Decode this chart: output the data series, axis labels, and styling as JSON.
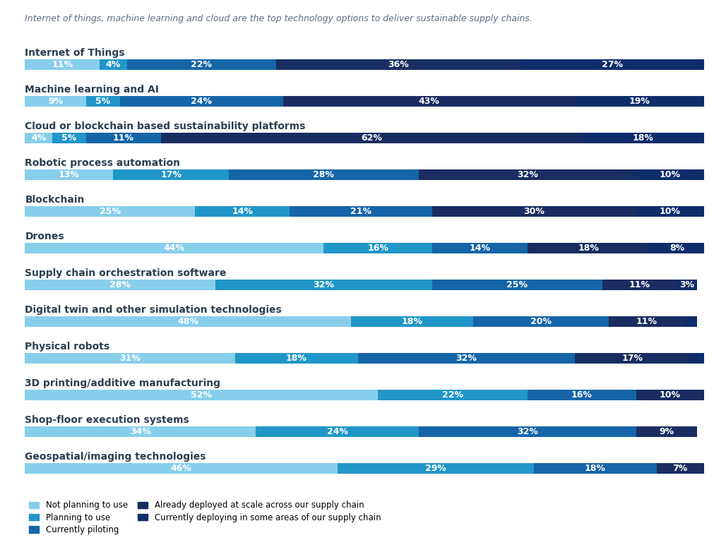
{
  "subtitle": "Internet of things, machine learning and cloud are the top technology options to deliver sustainable supply chains.",
  "categories": [
    "Internet of Things",
    "Machine learning and AI",
    "Cloud or blockchain based sustainability platforms",
    "Robotic process automation",
    "Blockchain",
    "Drones",
    "Supply chain orchestration software",
    "Digital twin and other simulation technologies",
    "Physical robots",
    "3D printing/additive manufacturing",
    "Shop-floor execution systems",
    "Geospatial/imaging technologies"
  ],
  "series_labels": [
    "Not planning to use",
    "Planning to use",
    "Currently piloting",
    "Already deployed at scale across our supply chain",
    "Currently deploying in some areas of our supply chain"
  ],
  "colors": [
    "#87CEEB",
    "#2196C8",
    "#1565A8",
    "#192D60",
    "#0E2D6B"
  ],
  "data": [
    [
      11,
      4,
      22,
      36,
      27
    ],
    [
      9,
      5,
      24,
      43,
      19
    ],
    [
      4,
      5,
      11,
      62,
      18
    ],
    [
      13,
      17,
      28,
      32,
      10
    ],
    [
      25,
      14,
      21,
      30,
      10
    ],
    [
      44,
      16,
      14,
      18,
      8
    ],
    [
      28,
      32,
      25,
      11,
      3
    ],
    [
      48,
      18,
      20,
      11,
      2
    ],
    [
      31,
      18,
      32,
      17,
      2
    ],
    [
      52,
      22,
      16,
      10,
      0
    ],
    [
      34,
      24,
      32,
      9,
      0
    ],
    [
      46,
      29,
      18,
      7,
      0
    ]
  ],
  "background_color": "#ffffff",
  "category_color": "#2C3E50",
  "subtitle_color": "#5D6D7E",
  "text_color_white": "#ffffff",
  "font_size_bar": 9,
  "font_size_category": 10,
  "font_size_subtitle": 9,
  "bar_height": 0.52
}
